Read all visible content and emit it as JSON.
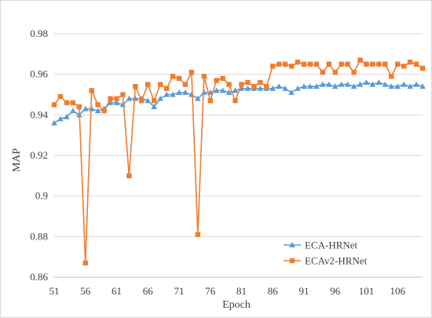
{
  "chart_data": {
    "type": "line",
    "xlabel": "Epoch",
    "ylabel": "MAP",
    "x_range": [
      51,
      110
    ],
    "x_ticks": [
      51,
      56,
      61,
      66,
      71,
      76,
      81,
      86,
      91,
      96,
      101,
      106
    ],
    "ylim": [
      0.86,
      0.98
    ],
    "y_ticks": [
      0.86,
      0.88,
      0.9,
      0.92,
      0.94,
      0.96,
      0.98
    ],
    "y_tick_labels": [
      "0.86",
      "0.88",
      "0.9",
      "0.92",
      "0.94",
      "0.96",
      "0.98"
    ],
    "grid": "horizontal",
    "legend_position": "bottom-right",
    "series": [
      {
        "name": "ECA-HRNet",
        "color": "#5b9bd5",
        "marker": "triangle",
        "x": [
          51,
          52,
          53,
          54,
          55,
          56,
          57,
          58,
          59,
          60,
          61,
          62,
          63,
          64,
          65,
          66,
          67,
          68,
          69,
          70,
          71,
          72,
          73,
          74,
          75,
          76,
          77,
          78,
          79,
          80,
          81,
          82,
          83,
          84,
          85,
          86,
          87,
          88,
          89,
          90,
          91,
          92,
          93,
          94,
          95,
          96,
          97,
          98,
          99,
          100,
          101,
          102,
          103,
          104,
          105,
          106,
          107,
          108,
          109,
          110
        ],
        "values": [
          0.936,
          0.938,
          0.939,
          0.942,
          0.94,
          0.943,
          0.943,
          0.942,
          0.943,
          0.946,
          0.946,
          0.945,
          0.948,
          0.948,
          0.948,
          0.947,
          0.944,
          0.948,
          0.95,
          0.95,
          0.951,
          0.951,
          0.95,
          0.948,
          0.951,
          0.951,
          0.952,
          0.952,
          0.951,
          0.952,
          0.953,
          0.953,
          0.953,
          0.953,
          0.953,
          0.953,
          0.954,
          0.953,
          0.951,
          0.953,
          0.954,
          0.954,
          0.954,
          0.955,
          0.955,
          0.954,
          0.955,
          0.955,
          0.954,
          0.955,
          0.956,
          0.955,
          0.956,
          0.955,
          0.954,
          0.954,
          0.955,
          0.954,
          0.955,
          0.954
        ]
      },
      {
        "name": "ECAv2-HRNet",
        "color": "#ed7d31",
        "marker": "square",
        "x": [
          51,
          52,
          53,
          54,
          55,
          56,
          57,
          58,
          59,
          60,
          61,
          62,
          63,
          64,
          65,
          66,
          67,
          68,
          69,
          70,
          71,
          72,
          73,
          74,
          75,
          76,
          77,
          78,
          79,
          80,
          81,
          82,
          83,
          84,
          85,
          86,
          87,
          88,
          89,
          90,
          91,
          92,
          93,
          94,
          95,
          96,
          97,
          98,
          99,
          100,
          101,
          102,
          103,
          104,
          105,
          106,
          107,
          108,
          109,
          110
        ],
        "values": [
          0.945,
          0.949,
          0.946,
          0.946,
          0.944,
          0.867,
          0.952,
          0.945,
          0.942,
          0.948,
          0.948,
          0.95,
          0.91,
          0.954,
          0.947,
          0.955,
          0.947,
          0.955,
          0.953,
          0.959,
          0.958,
          0.955,
          0.961,
          0.881,
          0.959,
          0.947,
          0.957,
          0.958,
          0.955,
          0.947,
          0.955,
          0.956,
          0.954,
          0.956,
          0.954,
          0.964,
          0.965,
          0.965,
          0.964,
          0.966,
          0.965,
          0.965,
          0.965,
          0.961,
          0.965,
          0.961,
          0.965,
          0.965,
          0.961,
          0.967,
          0.965,
          0.965,
          0.965,
          0.965,
          0.959,
          0.965,
          0.964,
          0.966,
          0.965,
          0.963
        ]
      }
    ]
  }
}
